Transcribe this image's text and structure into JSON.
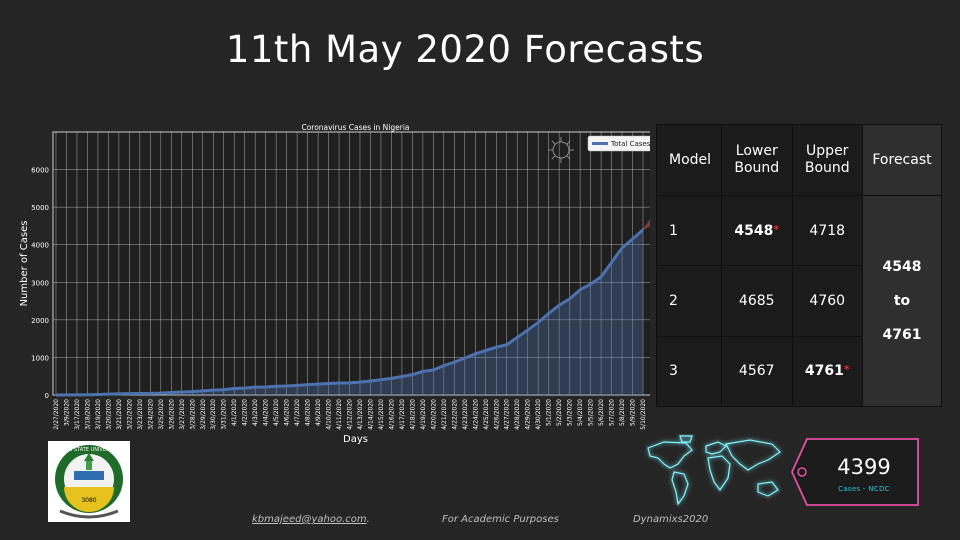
{
  "slide": {
    "title": "11th May 2020 Forecasts"
  },
  "chart_data": {
    "type": "area",
    "title": "Coronavirus Cases in Nigeria",
    "xlabel": "Days",
    "ylabel": "Number of Cases",
    "ylim": [
      0,
      7000
    ],
    "yticks": [
      0,
      1000,
      2000,
      3000,
      4000,
      5000,
      6000
    ],
    "grid": true,
    "legend_position": "top-right",
    "categories": [
      "2/27/2020",
      "3/9/2020",
      "3/17/2020",
      "3/18/2020",
      "3/19/2020",
      "3/20/2020",
      "3/21/2020",
      "3/22/2020",
      "3/23/2020",
      "3/24/2020",
      "3/25/2020",
      "3/26/2020",
      "3/27/2020",
      "3/28/2020",
      "3/29/2020",
      "3/30/2020",
      "3/31/2020",
      "4/1/2020",
      "4/2/2020",
      "4/3/2020",
      "4/4/2020",
      "4/5/2020",
      "4/6/2020",
      "4/7/2020",
      "4/8/2020",
      "4/9/2020",
      "4/10/2020",
      "4/11/2020",
      "4/12/2020",
      "4/13/2020",
      "4/14/2020",
      "4/15/2020",
      "4/16/2020",
      "4/17/2020",
      "4/18/2020",
      "4/19/2020",
      "4/20/2020",
      "4/21/2020",
      "4/22/2020",
      "4/23/2020",
      "4/24/2020",
      "4/25/2020",
      "4/26/2020",
      "4/27/2020",
      "4/28/2020",
      "4/29/2020",
      "4/30/2020",
      "5/1/2020",
      "5/2/2020",
      "5/3/2020",
      "5/4/2020",
      "5/5/2020",
      "5/6/2020",
      "5/7/2020",
      "5/8/2020",
      "5/9/2020",
      "5/10/2020"
    ],
    "series": [
      {
        "name": "Total Cases",
        "color": "#4c72b0",
        "values": [
          1,
          2,
          3,
          8,
          12,
          22,
          30,
          36,
          40,
          44,
          51,
          65,
          81,
          89,
          111,
          131,
          139,
          174,
          184,
          210,
          214,
          232,
          238,
          254,
          276,
          288,
          305,
          318,
          323,
          343,
          373,
          407,
          442,
          493,
          542,
          627,
          665,
          782,
          873,
          981,
          1095,
          1182,
          1273,
          1337,
          1532,
          1728,
          1932,
          2170,
          2388,
          2558,
          2802,
          2950,
          3145,
          3526,
          3912,
          4151,
          4399
        ]
      }
    ],
    "forecast": {
      "color": "#c44e52",
      "lower": [
        4399,
        4548
      ],
      "upper": [
        4399,
        4761
      ]
    }
  },
  "table": {
    "headers": [
      "Model",
      "Lower Bound",
      "Upper Bound",
      "Forecast"
    ],
    "rows": [
      {
        "model": "1",
        "lower": "4548",
        "upper": "4718"
      },
      {
        "model": "2",
        "lower": "4685",
        "upper": "4760"
      },
      {
        "model": "3",
        "lower": "4567",
        "upper": "4761"
      }
    ],
    "star": "*",
    "forecast": {
      "from": "4548",
      "to_word": "to",
      "to": "4761"
    }
  },
  "logo": {
    "text": "OSUN STATE UNIVERSITY",
    "number": "3080"
  },
  "cases_tag": {
    "value": "4399",
    "label": "Cases - NCDC",
    "color": "#e24fa4"
  },
  "footer": {
    "email": "kbmajeed@yahoo.com",
    "email_suffix": ".",
    "purpose": "For Academic Purposes",
    "brand": "Dynamixs2020"
  }
}
